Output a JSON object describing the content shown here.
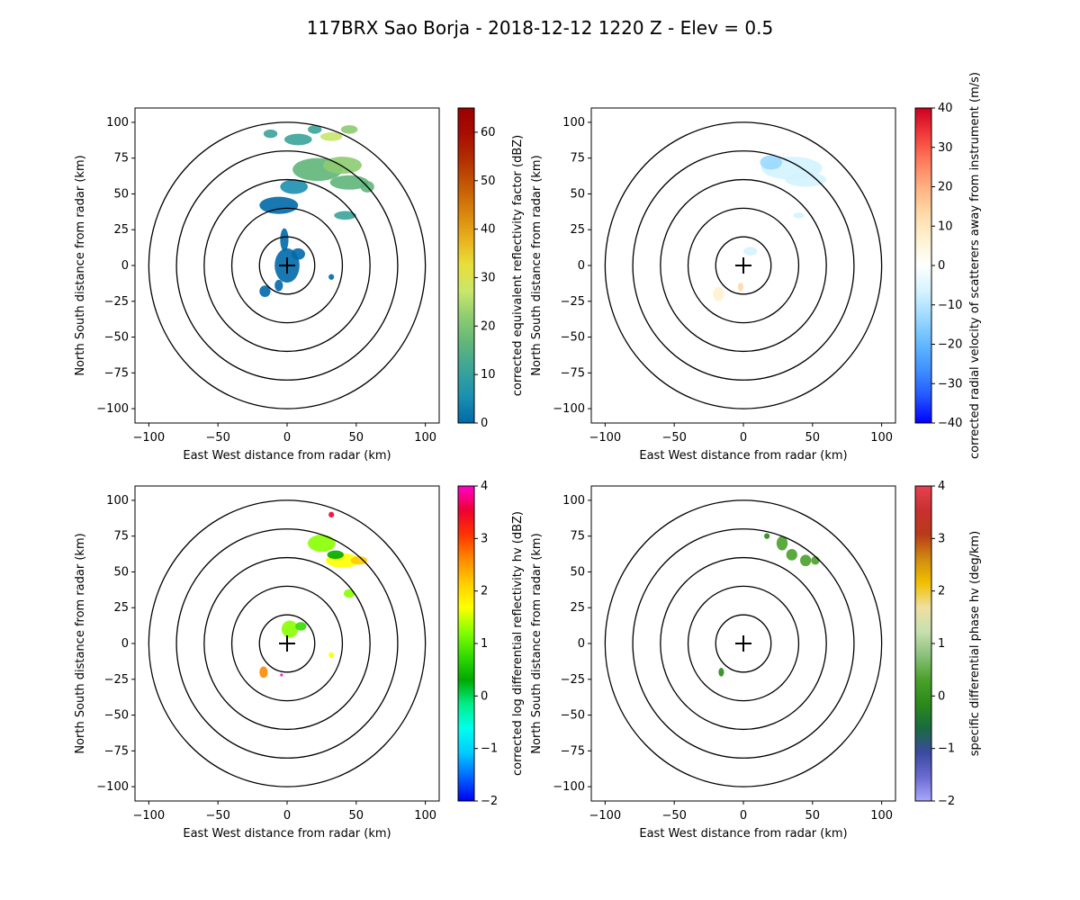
{
  "figure": {
    "title": "117BRX Sao Borja - 2018-12-12 1220 Z -  Elev = 0.5"
  },
  "chart_data": [
    {
      "type": "heatmap",
      "panel": "top-left",
      "xlabel": "East West distance from radar (km)",
      "ylabel": "North South distance from radar (km)",
      "xlim": [
        -110,
        110
      ],
      "ylim": [
        -110,
        110
      ],
      "ticks": [
        -100,
        -75,
        -50,
        -25,
        0,
        25,
        50,
        75,
        100
      ],
      "x_ticks": [
        -100,
        -50,
        0,
        50,
        100
      ],
      "range_rings_km": [
        20,
        40,
        60,
        80,
        100
      ],
      "colorbar": {
        "label": "corrected equivalent reflectivity factor (dBZ)",
        "min": 0,
        "max": 65,
        "ticks": [
          0,
          10,
          20,
          30,
          40,
          50,
          60
        ],
        "colors": [
          "#0069a8",
          "#1b8fb0",
          "#3aa39a",
          "#5fb57a",
          "#8ccb70",
          "#c8e66c",
          "#e8e03a",
          "#e9b11d",
          "#d9850c",
          "#c65a05",
          "#b33000",
          "#a80d00",
          "#9a0000"
        ]
      },
      "echoes": [
        {
          "x": 0,
          "y": 0,
          "rx": 9,
          "ry": 12,
          "value": 3
        },
        {
          "x": -2,
          "y": 18,
          "rx": 3,
          "ry": 8,
          "value": 2
        },
        {
          "x": 8,
          "y": 8,
          "rx": 5,
          "ry": 4,
          "value": 4
        },
        {
          "x": -16,
          "y": -18,
          "rx": 4,
          "ry": 4,
          "value": 3
        },
        {
          "x": -6,
          "y": -14,
          "rx": 3,
          "ry": 4,
          "value": 2
        },
        {
          "x": 32,
          "y": -8,
          "rx": 2,
          "ry": 2,
          "value": 4
        },
        {
          "x": -6,
          "y": 42,
          "rx": 14,
          "ry": 6,
          "value": 4
        },
        {
          "x": 5,
          "y": 55,
          "rx": 10,
          "ry": 5,
          "value": 6
        },
        {
          "x": 22,
          "y": 67,
          "rx": 18,
          "ry": 8,
          "value": 17
        },
        {
          "x": 40,
          "y": 70,
          "rx": 14,
          "ry": 6,
          "value": 20
        },
        {
          "x": 45,
          "y": 58,
          "rx": 14,
          "ry": 5,
          "value": 15
        },
        {
          "x": 58,
          "y": 55,
          "rx": 5,
          "ry": 4,
          "value": 18
        },
        {
          "x": 42,
          "y": 35,
          "rx": 8,
          "ry": 3,
          "value": 11
        },
        {
          "x": 8,
          "y": 88,
          "rx": 10,
          "ry": 4,
          "value": 10
        },
        {
          "x": 32,
          "y": 90,
          "rx": 8,
          "ry": 3,
          "value": 25
        },
        {
          "x": 20,
          "y": 95,
          "rx": 5,
          "ry": 3,
          "value": 12
        },
        {
          "x": 45,
          "y": 95,
          "rx": 6,
          "ry": 3,
          "value": 22
        },
        {
          "x": -12,
          "y": 92,
          "rx": 5,
          "ry": 3,
          "value": 14
        }
      ]
    },
    {
      "type": "heatmap",
      "panel": "top-right",
      "xlabel": "East West distance from radar (km)",
      "ylabel": "North South distance from radar (km)",
      "xlim": [
        -110,
        110
      ],
      "ylim": [
        -110,
        110
      ],
      "ticks": [
        -100,
        -75,
        -50,
        -25,
        0,
        25,
        50,
        75,
        100
      ],
      "x_ticks": [
        -100,
        -50,
        0,
        50,
        100
      ],
      "range_rings_km": [
        20,
        40,
        60,
        80,
        100
      ],
      "colorbar": {
        "label": "corrected radial velocity of scatterers away from instrument (m/s)",
        "min": -40,
        "max": 40,
        "ticks": [
          -40,
          -30,
          -20,
          -10,
          0,
          10,
          20,
          30,
          40
        ],
        "colors": [
          "#0000ff",
          "#2255ff",
          "#3f8fff",
          "#62b8ff",
          "#9ad9ff",
          "#d4f3ff",
          "#ffffff",
          "#fff2d0",
          "#ffd9a8",
          "#ffb080",
          "#ff7a5c",
          "#f23a3a",
          "#cc0022"
        ]
      },
      "echoes": [
        {
          "x": 35,
          "y": 68,
          "rx": 22,
          "ry": 8,
          "value": -8
        },
        {
          "x": 45,
          "y": 60,
          "rx": 15,
          "ry": 5,
          "value": -7
        },
        {
          "x": 20,
          "y": 72,
          "rx": 8,
          "ry": 5,
          "value": -10
        },
        {
          "x": 5,
          "y": 10,
          "rx": 5,
          "ry": 3,
          "value": -8
        },
        {
          "x": -18,
          "y": -20,
          "rx": 4,
          "ry": 5,
          "value": 8
        },
        {
          "x": -2,
          "y": -15,
          "rx": 2,
          "ry": 3,
          "value": 10
        },
        {
          "x": 40,
          "y": 35,
          "rx": 4,
          "ry": 2,
          "value": -6
        }
      ]
    },
    {
      "type": "heatmap",
      "panel": "bottom-left",
      "xlabel": "East West distance from radar (km)",
      "ylabel": "North South distance from radar (km)",
      "xlim": [
        -110,
        110
      ],
      "ylim": [
        -110,
        110
      ],
      "ticks": [
        -100,
        -75,
        -50,
        -25,
        0,
        25,
        50,
        75,
        100
      ],
      "x_ticks": [
        -100,
        -50,
        0,
        50,
        100
      ],
      "range_rings_km": [
        20,
        40,
        60,
        80,
        100
      ],
      "colorbar": {
        "label": "corrected log differential reflectivity hv (dBZ)",
        "min": -2,
        "max": 4,
        "ticks": [
          -2,
          -1,
          0,
          1,
          2,
          3,
          4
        ],
        "colors": [
          "#0000ee",
          "#0066ff",
          "#00ccff",
          "#00ffee",
          "#00ee88",
          "#00aa00",
          "#33dd00",
          "#88ff00",
          "#ffff00",
          "#ffcc00",
          "#ff8800",
          "#ff3300",
          "#ee0033",
          "#ff00cc"
        ]
      },
      "echoes": [
        {
          "x": 25,
          "y": 70,
          "rx": 10,
          "ry": 6,
          "value": 1.3
        },
        {
          "x": 40,
          "y": 58,
          "rx": 12,
          "ry": 5,
          "value": 1.8
        },
        {
          "x": 52,
          "y": 58,
          "rx": 6,
          "ry": 3,
          "value": 2.2
        },
        {
          "x": 35,
          "y": 62,
          "rx": 6,
          "ry": 3,
          "value": 0.5
        },
        {
          "x": 45,
          "y": 35,
          "rx": 4,
          "ry": 3,
          "value": 1.2
        },
        {
          "x": 2,
          "y": 10,
          "rx": 6,
          "ry": 6,
          "value": 1.1
        },
        {
          "x": 10,
          "y": 12,
          "rx": 4,
          "ry": 3,
          "value": 0.7
        },
        {
          "x": -17,
          "y": -20,
          "rx": 3,
          "ry": 4,
          "value": 2.4
        },
        {
          "x": -4,
          "y": -22,
          "rx": 1,
          "ry": 1,
          "value": 3.8
        },
        {
          "x": 32,
          "y": 90,
          "rx": 2,
          "ry": 2,
          "value": 3.2
        },
        {
          "x": 32,
          "y": -8,
          "rx": 2,
          "ry": 2,
          "value": 1.5
        }
      ]
    },
    {
      "type": "heatmap",
      "panel": "bottom-right",
      "xlabel": "East West distance from radar (km)",
      "ylabel": "North South distance from radar (km)",
      "xlim": [
        -110,
        110
      ],
      "ylim": [
        -110,
        110
      ],
      "ticks": [
        -100,
        -75,
        -50,
        -25,
        0,
        25,
        50,
        75,
        100
      ],
      "x_ticks": [
        -100,
        -50,
        0,
        50,
        100
      ],
      "range_rings_km": [
        20,
        40,
        60,
        80,
        100
      ],
      "colorbar": {
        "label": "specific differential phase hv (deg/km)",
        "min": -2,
        "max": 4,
        "ticks": [
          -2,
          -1,
          0,
          1,
          2,
          3,
          4
        ],
        "colors": [
          "#a8a8ff",
          "#6a6ad0",
          "#3a4aa0",
          "#1a6a40",
          "#2a8a1a",
          "#4aa02a",
          "#8ac07a",
          "#c8e0b0",
          "#f0e0a0",
          "#f0c000",
          "#d08a10",
          "#b83a1a",
          "#c83030",
          "#e84050"
        ]
      },
      "echoes": [
        {
          "x": 28,
          "y": 70,
          "rx": 4,
          "ry": 5,
          "value": 0.3
        },
        {
          "x": 35,
          "y": 62,
          "rx": 4,
          "ry": 4,
          "value": 0.2
        },
        {
          "x": 45,
          "y": 58,
          "rx": 4,
          "ry": 4,
          "value": 0.4
        },
        {
          "x": 17,
          "y": 75,
          "rx": 2,
          "ry": 2,
          "value": 0.1
        },
        {
          "x": 52,
          "y": 58,
          "rx": 3,
          "ry": 3,
          "value": 0.3
        },
        {
          "x": -16,
          "y": -20,
          "rx": 2,
          "ry": 3,
          "value": 0.1
        }
      ]
    }
  ]
}
